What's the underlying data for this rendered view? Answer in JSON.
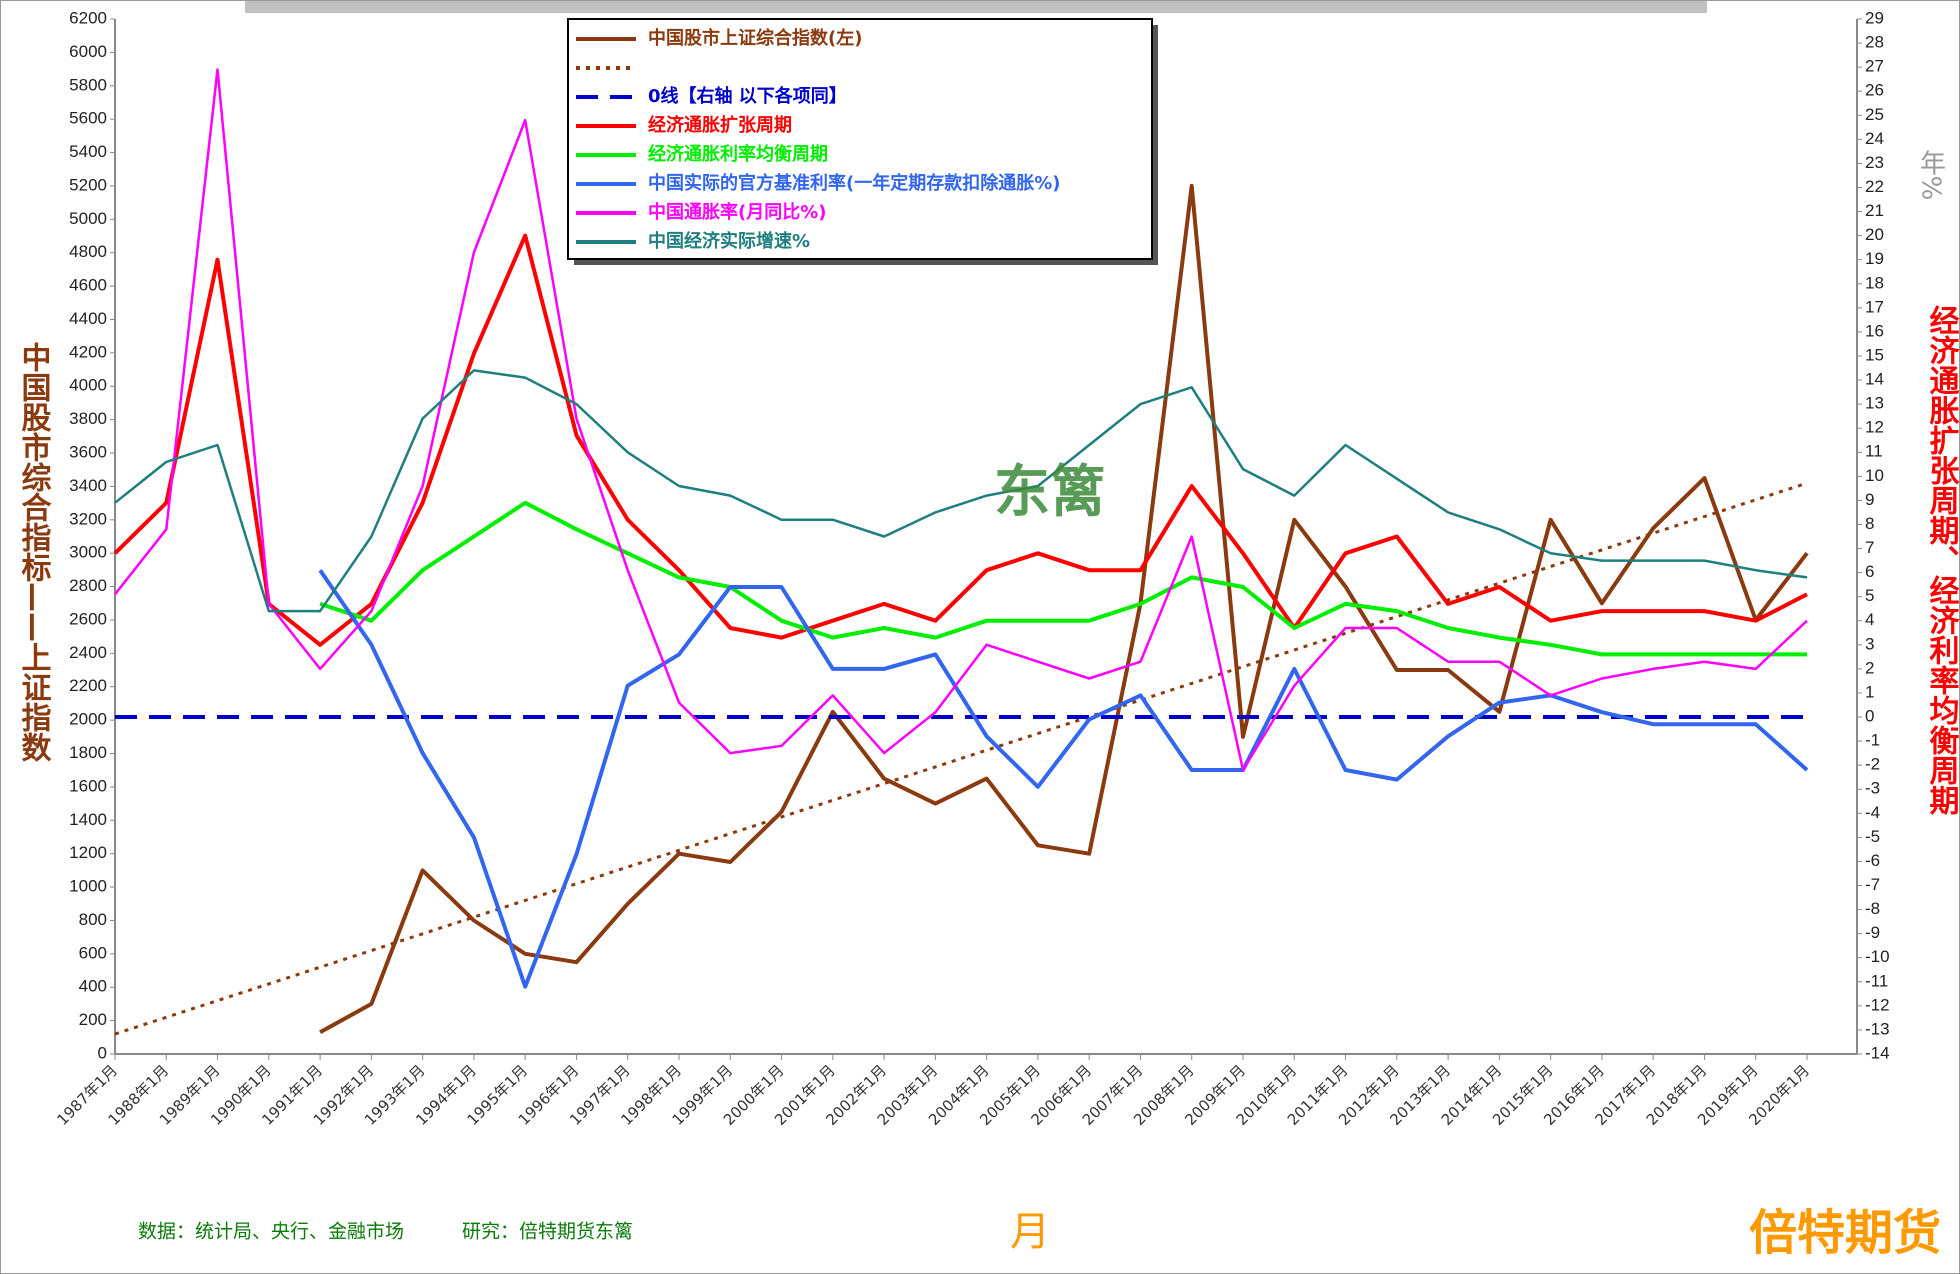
{
  "chart_data": {
    "type": "line",
    "y_label": "中国股市综合指标——上证指数",
    "y2_label": "经济通胀扩张周期、经济利率均衡周期",
    "y2_unit": "年%",
    "x_label": "月",
    "watermark": "东篱",
    "footer": [
      "数据：统计局、央行、金融市场",
      "研究：倍特期货东篱"
    ],
    "logo": "倍特期货",
    "categories": [
      "1987年1月",
      "1988年1月",
      "1989年1月",
      "1990年1月",
      "1991年1月",
      "1992年1月",
      "1993年1月",
      "1994年1月",
      "1995年1月",
      "1996年1月",
      "1997年1月",
      "1998年1月",
      "1999年1月",
      "2000年1月",
      "2001年1月",
      "2002年1月",
      "2003年1月",
      "2004年1月",
      "2005年1月",
      "2006年1月",
      "2007年1月",
      "2008年1月",
      "2009年1月",
      "2010年1月",
      "2011年1月",
      "2012年1月",
      "2013年1月",
      "2014年1月",
      "2015年1月",
      "2016年1月",
      "2017年1月",
      "2018年1月",
      "2019年1月",
      "2020年1月"
    ],
    "ylim": [
      0,
      6200
    ],
    "yticks": [
      0,
      200,
      400,
      600,
      800,
      1000,
      1200,
      1400,
      1600,
      1800,
      2000,
      2200,
      2400,
      2600,
      2800,
      3000,
      3200,
      3400,
      3600,
      3800,
      4000,
      4200,
      4400,
      4600,
      4800,
      5000,
      5200,
      5400,
      5600,
      5800,
      6000,
      6200
    ],
    "y2lim": [
      -14,
      29
    ],
    "y2ticks": [
      -14,
      -13,
      -12,
      -11,
      -10,
      -9,
      -8,
      -7,
      -6,
      -5,
      -4,
      -3,
      -2,
      -1,
      0,
      1,
      2,
      3,
      4,
      5,
      6,
      7,
      8,
      9,
      10,
      11,
      12,
      13,
      14,
      15,
      16,
      17,
      18,
      19,
      20,
      21,
      22,
      23,
      24,
      25,
      26,
      27,
      28,
      29
    ],
    "series": [
      {
        "name": "中国股市上证综合指数(左)",
        "color": "#8b3a0f",
        "style": "solid",
        "width": 4,
        "values": [
          null,
          null,
          null,
          null,
          130,
          300,
          1100,
          800,
          600,
          550,
          900,
          1200,
          1150,
          1450,
          2050,
          1650,
          1500,
          1650,
          1250,
          1200,
          2700,
          5200,
          1900,
          3200,
          2800,
          2300,
          2300,
          2050,
          3200,
          2700,
          3150,
          3450,
          2600,
          3000
        ]
      },
      {
        "color": "#8b3a0f",
        "style": "dotted",
        "width": 3,
        "values": [
          120,
          220,
          320,
          420,
          520,
          620,
          720,
          820,
          920,
          1020,
          1120,
          1220,
          1320,
          1420,
          1520,
          1620,
          1720,
          1820,
          1920,
          2020,
          2120,
          2220,
          2320,
          2420,
          2520,
          2620,
          2720,
          2820,
          2920,
          3020,
          3120,
          3220,
          3320,
          3420
        ]
      },
      {
        "name": "0线【右轴 以下各项同】",
        "color": "#0000cc",
        "style": "dashed",
        "width": 4,
        "axis": "y2",
        "values": [
          0,
          0,
          0,
          0,
          0,
          0,
          0,
          0,
          0,
          0,
          0,
          0,
          0,
          0,
          0,
          0,
          0,
          0,
          0,
          0,
          0,
          0,
          0,
          0,
          0,
          0,
          0,
          0,
          0,
          0,
          0,
          0,
          0,
          0
        ]
      },
      {
        "name": "经济通胀扩张周期",
        "color": "#ff0000",
        "style": "solid",
        "width": 4,
        "axis": "y2",
        "values": [
          6.8,
          8.9,
          19,
          4.7,
          3,
          4.7,
          8.9,
          15.1,
          20,
          11.7,
          8.2,
          6.1,
          3.7,
          3.3,
          4,
          4.7,
          4,
          6.1,
          6.8,
          6.1,
          6.1,
          9.6,
          6.8,
          3.7,
          6.8,
          7.5,
          4.7,
          5.4,
          4,
          4.4,
          4.4,
          4.4,
          4,
          5.1
        ]
      },
      {
        "name": "经济通胀利率均衡周期",
        "color": "#00ee00",
        "style": "solid",
        "width": 4,
        "axis": "y2",
        "values": [
          null,
          null,
          null,
          null,
          4.7,
          4,
          6.1,
          7.5,
          8.9,
          7.8,
          6.8,
          5.8,
          5.4,
          4,
          3.3,
          3.7,
          3.3,
          4,
          4,
          4,
          4.7,
          5.8,
          5.4,
          3.7,
          4.7,
          4.4,
          3.7,
          3.3,
          3,
          2.6,
          2.6,
          2.6,
          2.6,
          2.6
        ]
      },
      {
        "name": "中国实际的官方基准利率(一年定期存款扣除通胀%)",
        "color": "#3366ee",
        "style": "solid",
        "width": 4,
        "axis": "y2",
        "values": [
          null,
          null,
          null,
          null,
          6.1,
          3,
          -1.5,
          -5,
          -11.2,
          -5.7,
          1.3,
          2.6,
          5.4,
          5.4,
          2,
          2,
          2.6,
          -0.8,
          -2.9,
          -0.1,
          0.9,
          -2.2,
          -2.2,
          2,
          -2.2,
          -2.6,
          -0.8,
          0.6,
          0.9,
          0.2,
          -0.3,
          -0.3,
          -0.3,
          -2.2
        ]
      },
      {
        "name": "中国通胀率(月同比%)",
        "color": "#ff00ff",
        "style": "solid",
        "width": 2.5,
        "axis": "y2",
        "values": [
          5.1,
          7.8,
          26.9,
          4.7,
          2,
          4.4,
          9.6,
          19.3,
          24.8,
          12.4,
          6.1,
          0.6,
          -1.5,
          -1.2,
          0.9,
          -1.5,
          0.2,
          3,
          2.3,
          1.6,
          2.3,
          7.5,
          -2.2,
          1.3,
          3.7,
          3.7,
          2.3,
          2.3,
          0.9,
          1.6,
          2,
          2.3,
          2,
          4
        ]
      },
      {
        "name": "中国经济实际增速%",
        "color": "#1f7f7f",
        "style": "solid",
        "width": 2.5,
        "axis": "y2",
        "values": [
          8.9,
          10.6,
          11.3,
          4.4,
          4.4,
          7.5,
          12.4,
          14.4,
          14.1,
          13,
          11,
          9.6,
          9.2,
          8.2,
          8.2,
          7.5,
          8.5,
          9.2,
          9.6,
          11.3,
          13,
          13.7,
          10.3,
          9.2,
          11.3,
          9.9,
          8.5,
          7.8,
          6.8,
          6.5,
          6.5,
          6.5,
          6.1,
          5.8
        ]
      }
    ]
  }
}
